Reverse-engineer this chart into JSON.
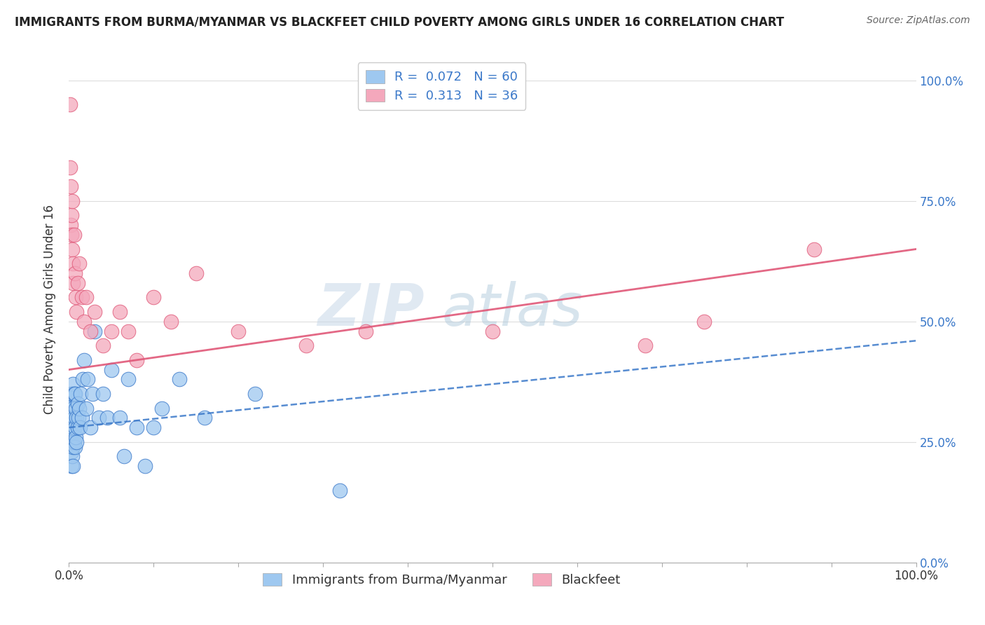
{
  "title": "IMMIGRANTS FROM BURMA/MYANMAR VS BLACKFEET CHILD POVERTY AMONG GIRLS UNDER 16 CORRELATION CHART",
  "source": "Source: ZipAtlas.com",
  "ylabel": "Child Poverty Among Girls Under 16",
  "legend_label1": "Immigrants from Burma/Myanmar",
  "legend_label2": "Blackfeet",
  "R1": 0.072,
  "N1": 60,
  "R2": 0.313,
  "N2": 36,
  "color1": "#9EC8F0",
  "color2": "#F4A8BC",
  "trendline1_color": "#3A78C9",
  "trendline2_color": "#E05878",
  "background": "#ffffff",
  "watermark_zip": "ZIP",
  "watermark_atlas": "atlas",
  "blue_x": [
    0.001,
    0.001,
    0.001,
    0.002,
    0.002,
    0.002,
    0.002,
    0.003,
    0.003,
    0.003,
    0.003,
    0.003,
    0.004,
    0.004,
    0.004,
    0.004,
    0.005,
    0.005,
    0.005,
    0.005,
    0.005,
    0.006,
    0.006,
    0.006,
    0.007,
    0.007,
    0.007,
    0.008,
    0.008,
    0.009,
    0.009,
    0.01,
    0.01,
    0.011,
    0.012,
    0.013,
    0.014,
    0.015,
    0.016,
    0.018,
    0.02,
    0.022,
    0.025,
    0.028,
    0.03,
    0.035,
    0.04,
    0.045,
    0.05,
    0.06,
    0.065,
    0.07,
    0.08,
    0.09,
    0.1,
    0.11,
    0.13,
    0.16,
    0.22,
    0.32
  ],
  "blue_y": [
    0.28,
    0.3,
    0.32,
    0.25,
    0.27,
    0.3,
    0.33,
    0.2,
    0.23,
    0.27,
    0.3,
    0.35,
    0.22,
    0.25,
    0.3,
    0.35,
    0.2,
    0.24,
    0.28,
    0.32,
    0.37,
    0.25,
    0.3,
    0.35,
    0.24,
    0.28,
    0.35,
    0.26,
    0.32,
    0.25,
    0.3,
    0.28,
    0.33,
    0.3,
    0.32,
    0.28,
    0.35,
    0.3,
    0.38,
    0.42,
    0.32,
    0.38,
    0.28,
    0.35,
    0.48,
    0.3,
    0.35,
    0.3,
    0.4,
    0.3,
    0.22,
    0.38,
    0.28,
    0.2,
    0.28,
    0.32,
    0.38,
    0.3,
    0.35,
    0.15
  ],
  "pink_x": [
    0.001,
    0.001,
    0.002,
    0.002,
    0.003,
    0.003,
    0.004,
    0.004,
    0.005,
    0.005,
    0.006,
    0.007,
    0.008,
    0.009,
    0.01,
    0.012,
    0.015,
    0.018,
    0.02,
    0.025,
    0.03,
    0.04,
    0.05,
    0.06,
    0.07,
    0.08,
    0.1,
    0.12,
    0.15,
    0.2,
    0.28,
    0.35,
    0.5,
    0.68,
    0.75,
    0.88
  ],
  "pink_y": [
    0.95,
    0.82,
    0.78,
    0.7,
    0.72,
    0.68,
    0.65,
    0.75,
    0.58,
    0.62,
    0.68,
    0.6,
    0.55,
    0.52,
    0.58,
    0.62,
    0.55,
    0.5,
    0.55,
    0.48,
    0.52,
    0.45,
    0.48,
    0.52,
    0.48,
    0.42,
    0.55,
    0.5,
    0.6,
    0.48,
    0.45,
    0.48,
    0.48,
    0.45,
    0.5,
    0.65
  ],
  "xlim": [
    0.0,
    1.0
  ],
  "ylim": [
    0.0,
    1.05
  ],
  "yticks": [
    0.0,
    0.25,
    0.5,
    0.75,
    1.0
  ],
  "ytick_labels_right": [
    "0.0%",
    "25.0%",
    "50.0%",
    "75.0%",
    "100.0%"
  ],
  "xtick_positions": [
    0.0,
    0.1,
    0.2,
    0.3,
    0.4,
    0.5,
    0.6,
    0.7,
    0.8,
    0.9,
    1.0
  ],
  "xtick_labels_show": [
    "0.0%",
    "",
    "",
    "",
    "",
    "",
    "",
    "",
    "",
    "",
    "100.0%"
  ],
  "grid_color": "#dddddd",
  "tick_color": "#aaaaaa"
}
